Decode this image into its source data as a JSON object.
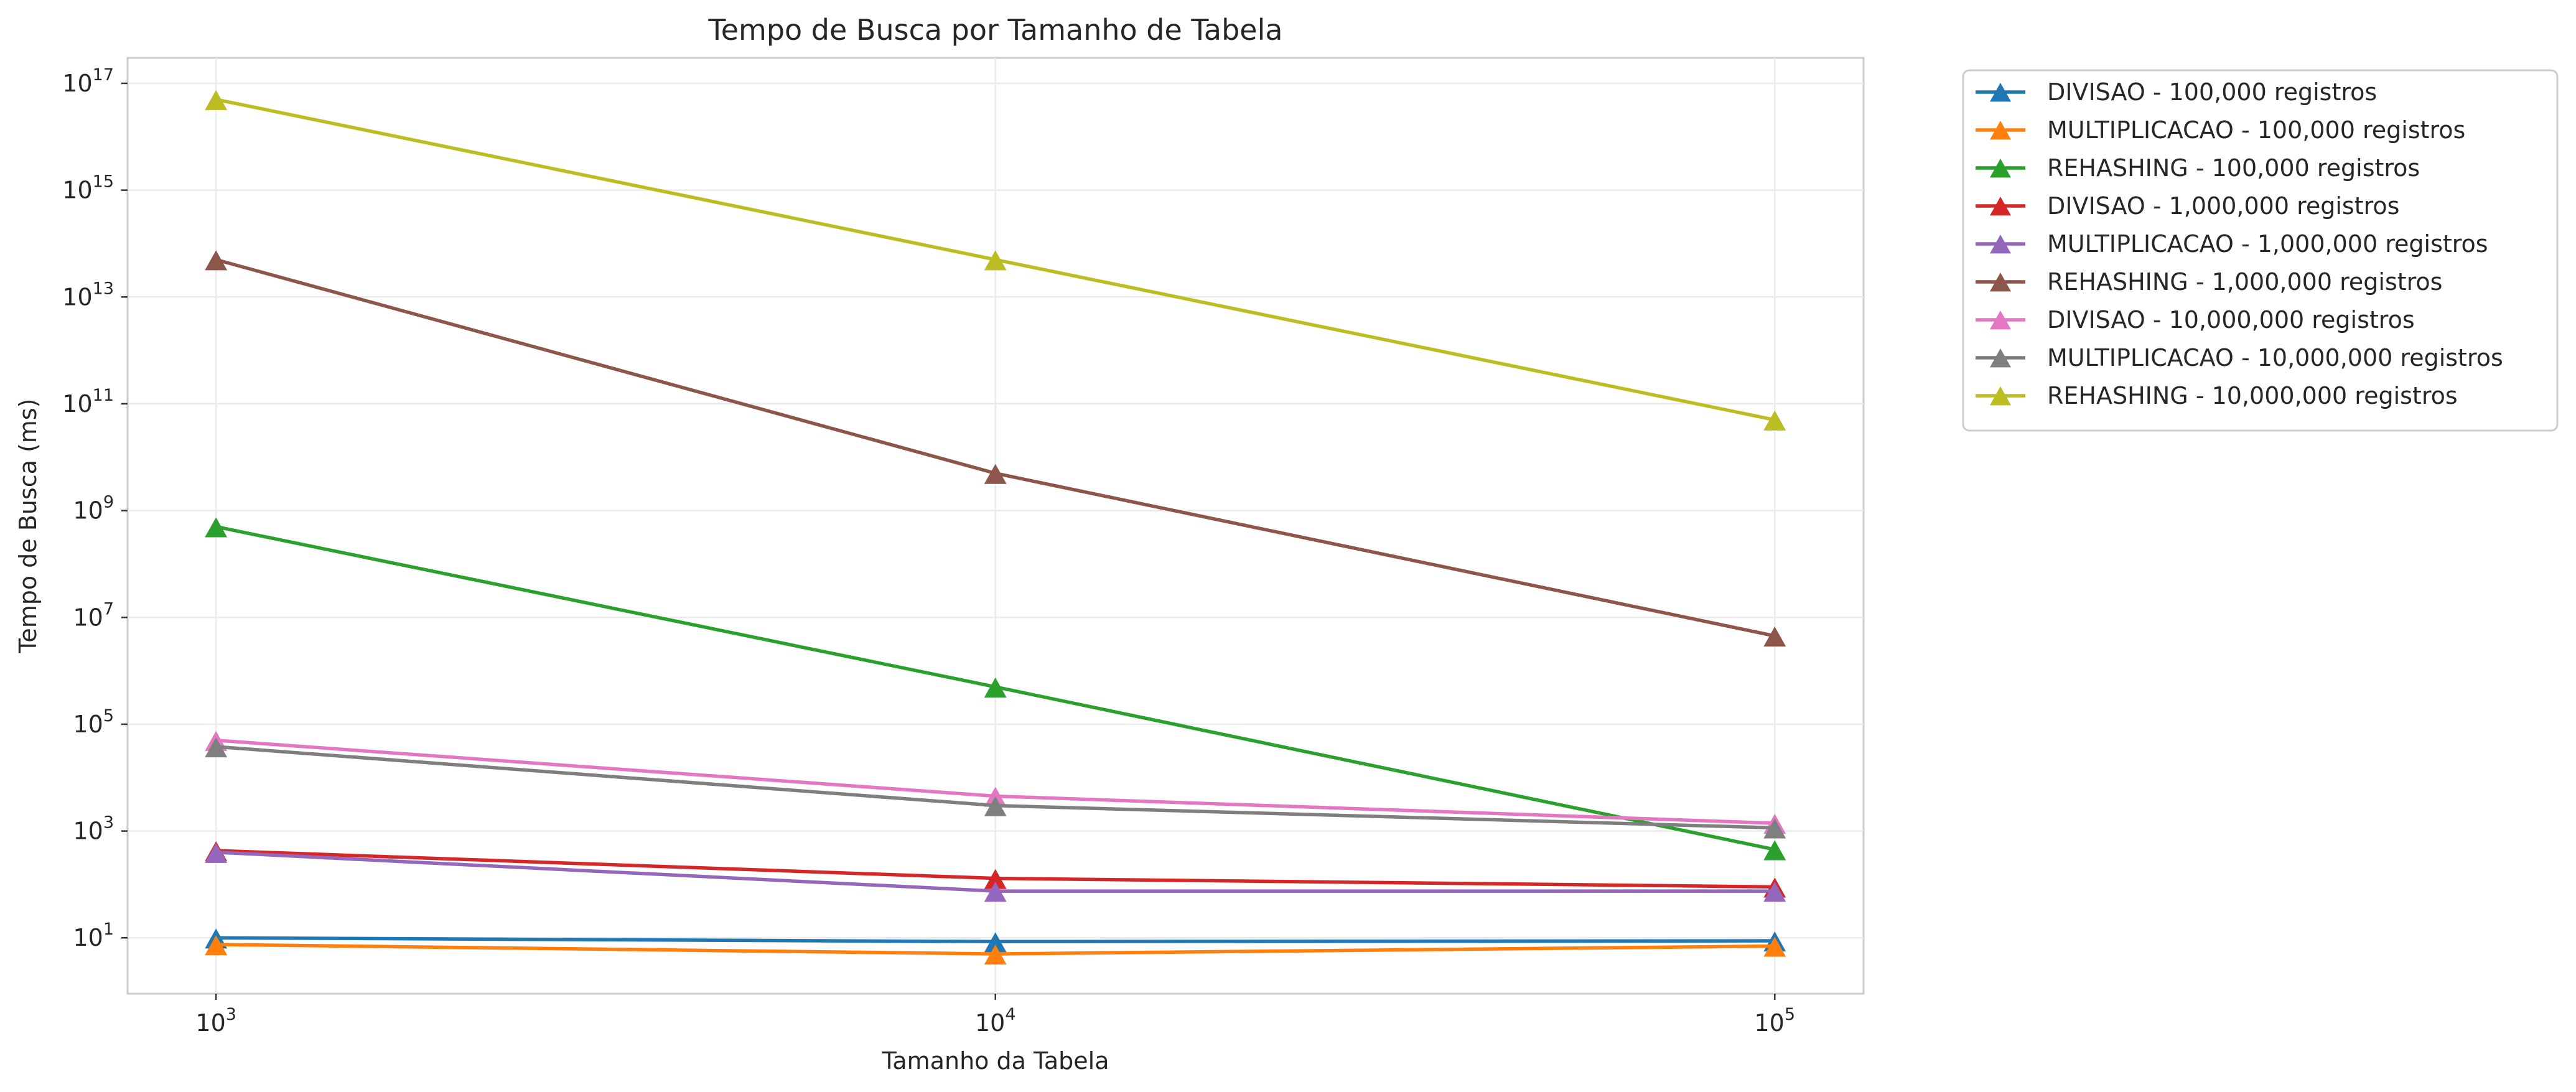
{
  "chart_data": {
    "type": "line",
    "title": "Tempo de Busca por Tamanho de Tabela",
    "xlabel": "Tamanho da Tabela",
    "ylabel": "Tempo de Busca (ms)",
    "x_scale": "log",
    "y_scale": "log",
    "x": [
      1000,
      10000,
      100000
    ],
    "x_ticks": [
      {
        "value": 1000,
        "base": "10",
        "exp": "3"
      },
      {
        "value": 10000,
        "base": "10",
        "exp": "4"
      },
      {
        "value": 100000,
        "base": "10",
        "exp": "5"
      }
    ],
    "y_ticks": [
      {
        "value": 10.0,
        "base": "10",
        "exp": "1"
      },
      {
        "value": 1000.0,
        "base": "10",
        "exp": "3"
      },
      {
        "value": 100000.0,
        "base": "10",
        "exp": "5"
      },
      {
        "value": 10000000.0,
        "base": "10",
        "exp": "7"
      },
      {
        "value": 1000000000.0,
        "base": "10",
        "exp": "9"
      },
      {
        "value": 100000000000.0,
        "base": "10",
        "exp": "11"
      },
      {
        "value": 10000000000000.0,
        "base": "10",
        "exp": "13"
      },
      {
        "value": 1000000000000000.0,
        "base": "10",
        "exp": "15"
      },
      {
        "value": 1e+17,
        "base": "10",
        "exp": "17"
      }
    ],
    "xlim": [
      770,
      130000
    ],
    "ylim": [
      0.9,
      3e+17
    ],
    "grid": true,
    "legend_position": "outside-top-right",
    "marker": "triangle",
    "series": [
      {
        "name": "DIVISAO - 100,000 registros",
        "color": "#1f77b4",
        "values": [
          10,
          8.5,
          8.8
        ]
      },
      {
        "name": "MULTIPLICACAO - 100,000 registros",
        "color": "#ff7f0e",
        "values": [
          7.5,
          5,
          7
        ]
      },
      {
        "name": "REHASHING - 100,000 registros",
        "color": "#2ca02c",
        "values": [
          500000000,
          500000,
          450
        ]
      },
      {
        "name": "DIVISAO - 1,000,000 registros",
        "color": "#d62728",
        "values": [
          430,
          130,
          90
        ]
      },
      {
        "name": "MULTIPLICACAO - 1,000,000 registros",
        "color": "#9467bd",
        "values": [
          400,
          75,
          75
        ]
      },
      {
        "name": "REHASHING - 1,000,000 registros",
        "color": "#8c564b",
        "values": [
          50000000000000,
          5000000000,
          4500000
        ]
      },
      {
        "name": "DIVISAO - 10,000,000 registros",
        "color": "#e377c2",
        "values": [
          50000,
          4500,
          1400
        ]
      },
      {
        "name": "MULTIPLICACAO - 10,000,000 registros",
        "color": "#7f7f7f",
        "values": [
          38000,
          3000,
          1150
        ]
      },
      {
        "name": "REHASHING - 10,000,000 registros",
        "color": "#bcbd22",
        "values": [
          50000000000000000,
          50000000000000,
          50000000000
        ]
      }
    ]
  }
}
